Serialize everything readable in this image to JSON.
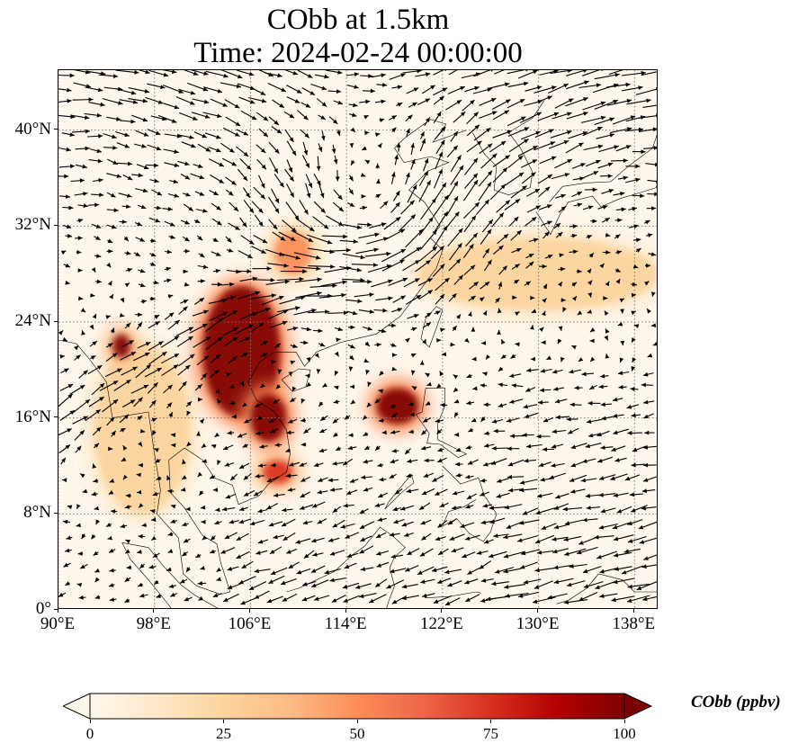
{
  "title_line1": "CObb at 1.5km",
  "title_line2": "Time: 2024-02-24 00:00:00",
  "map": {
    "lon_range": [
      90,
      140
    ],
    "lat_range": [
      0,
      45
    ],
    "x_ticks": [
      "90°E",
      "98°E",
      "106°E",
      "114°E",
      "122°E",
      "130°E",
      "138°E"
    ],
    "y_ticks": [
      "0°",
      "8°N",
      "16°N",
      "24°N",
      "32°N",
      "40°N"
    ],
    "gridlines": "dotted",
    "coastlines": true,
    "wind_vectors": true
  },
  "colorbar": {
    "label": "CObb (ppbv)",
    "ticks": [
      "0",
      "25",
      "50",
      "75",
      "100"
    ],
    "range": [
      0,
      100
    ],
    "extend": "both",
    "colormap": "OrRd",
    "colors": [
      "#fff7ec",
      "#fee8c8",
      "#fdd49e",
      "#fdbb84",
      "#fc8d59",
      "#ef6548",
      "#d7301f",
      "#b30000",
      "#7f0000"
    ]
  },
  "chart_data": {
    "type": "heatmap",
    "title": "CObb at 1.5km\nTime: 2024-02-24 00:00:00",
    "variable": "CObb",
    "units": "ppbv",
    "xlabel": "",
    "ylabel": "",
    "xlim": [
      90,
      140
    ],
    "ylim": [
      0,
      45
    ],
    "high_concentration_regions": [
      {
        "lon": [
          102,
          108.5
        ],
        "lat": [
          16,
          27
        ],
        "value": 100
      },
      {
        "lon": [
          106,
          109
        ],
        "lat": [
          14,
          18
        ],
        "value": 100
      },
      {
        "lon": [
          94.5,
          96
        ],
        "lat": [
          21,
          23
        ],
        "value": 95
      },
      {
        "lon": [
          107,
          109.5
        ],
        "lat": [
          10.5,
          12.5
        ],
        "value": 80
      },
      {
        "lon": [
          116.5,
          120
        ],
        "lat": [
          15.5,
          18.5
        ],
        "value": 100
      },
      {
        "lon": [
          108,
          111
        ],
        "lat": [
          28,
          31.5
        ],
        "value": 45
      },
      {
        "lon": [
          93,
          101
        ],
        "lat": [
          8,
          22
        ],
        "value": 30
      },
      {
        "lon": [
          120,
          140
        ],
        "lat": [
          25,
          31
        ],
        "value": 20
      }
    ]
  }
}
